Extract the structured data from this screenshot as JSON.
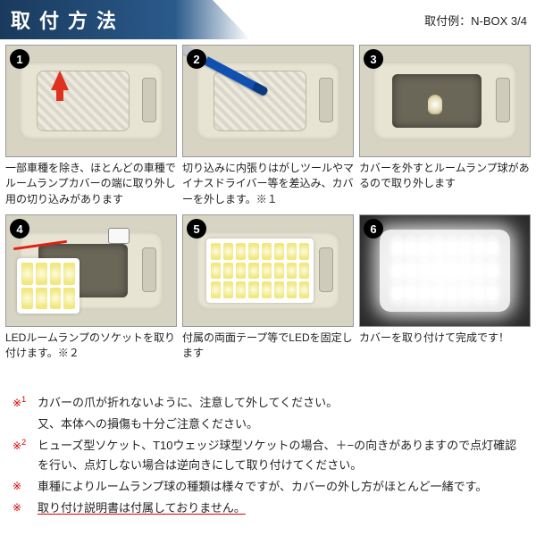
{
  "header": {
    "title": "取付方法",
    "subtitle": "取付例：N-BOX 3/4"
  },
  "steps": [
    {
      "num": "1",
      "caption": "一部車種を除き、ほとんどの車種でルームランプカバーの端に取り外し用の切り込みがあります"
    },
    {
      "num": "2",
      "caption": "切り込みに内張りはがしツールやマイナスドライバー等を差込み、カバーを外します。※１"
    },
    {
      "num": "3",
      "caption": "カバーを外すとルームランプ球があるので取り外します"
    },
    {
      "num": "4",
      "caption": "LEDルームランプのソケットを取り付けます。※２"
    },
    {
      "num": "5",
      "caption": "付属の両面テープ等でLEDを固定します"
    },
    {
      "num": "6",
      "caption": "カバーを取り付けて完成です！"
    }
  ],
  "notes": [
    {
      "mark": "※1",
      "text_a": "カバーの爪が折れないように、注意して外してください。",
      "text_b": "又、本体への損傷も十分ご注意ください。"
    },
    {
      "mark": "※2",
      "text_a": "ヒューズ型ソケット、T10ウェッジ球型ソケットの場合、＋−の向きがありますので点灯確認を行い、点灯しない場合は逆向きにして取り付けてください。",
      "text_b": ""
    },
    {
      "mark": "※",
      "text_a": "車種によりルームランプ球の種類は様々ですが、カバーの外し方がほとんど一緒です。",
      "text_b": ""
    },
    {
      "mark": "※",
      "text_a": "取り付け説明書は付属しておりません。",
      "text_b": "",
      "underline": true
    }
  ],
  "colors": {
    "header_grad_start": "#1a3a5c",
    "header_grad_end": "#2a5a8c",
    "accent_red": "#d00"
  }
}
